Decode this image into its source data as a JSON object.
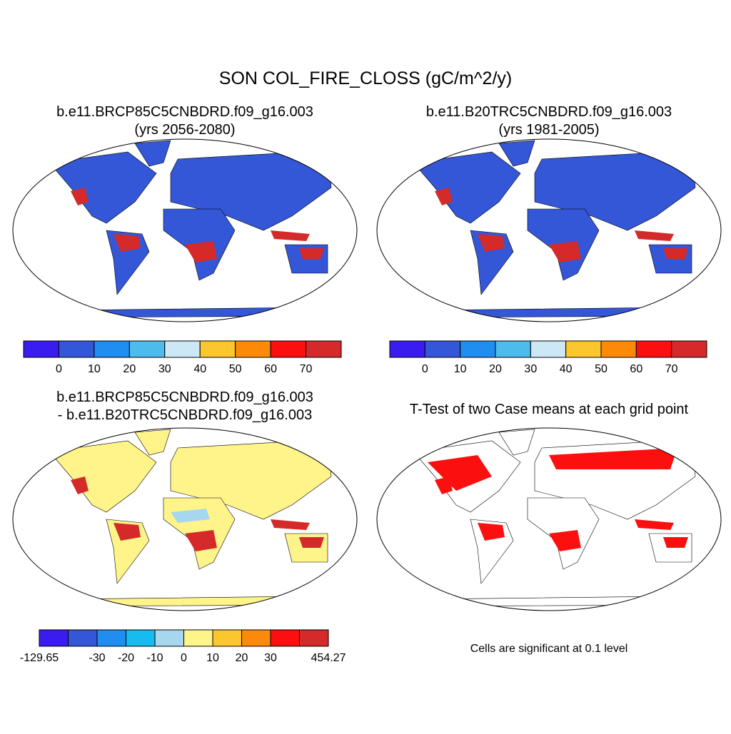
{
  "header": {
    "title": "SON COL_FIRE_CLOSS (gC/m^2/y)"
  },
  "panels": [
    {
      "title_lines": [
        "b.e11.BRCP85C5CNBDRD.f09_g16.003",
        "(yrs 2056-2080)"
      ],
      "colorbar": {
        "colors": [
          "#3b1cf0",
          "#3357d6",
          "#1f8ef0",
          "#4dbbec",
          "#cce8f6",
          "#fcc72e",
          "#fb8a0a",
          "#fb0f0f",
          "#d42a2a"
        ],
        "labels": [
          null,
          "0",
          "10",
          "20",
          "30",
          "40",
          "50",
          "60",
          "70",
          null
        ]
      }
    },
    {
      "title_lines": [
        "b.e11.B20TRC5CNBDRD.f09_g16.003",
        "(yrs 1981-2005)"
      ],
      "colorbar": {
        "colors": [
          "#3b1cf0",
          "#3357d6",
          "#1f8ef0",
          "#4dbbec",
          "#cce8f6",
          "#fcc72e",
          "#fb8a0a",
          "#fb0f0f",
          "#d42a2a"
        ],
        "labels": [
          null,
          "0",
          "10",
          "20",
          "30",
          "40",
          "50",
          "60",
          "70",
          null
        ]
      }
    },
    {
      "title_lines": [
        "b.e11.BRCP85C5CNBDRD.f09_g16.003",
        "- b.e11.B20TRC5CNBDRD.f09_g16.003"
      ],
      "colorbar": {
        "colors": [
          "#3b1cf0",
          "#3357d6",
          "#1f8ef0",
          "#16bbf0",
          "#a7d7ef",
          "#fff48a",
          "#fcc72e",
          "#fb8a0a",
          "#fb0f0f",
          "#d42a2a"
        ],
        "labels": [
          "-129.65",
          null,
          "-30",
          "-20",
          "-10",
          "0",
          "10",
          "20",
          "30",
          null,
          "454.27"
        ]
      }
    },
    {
      "title_lines": [
        "T-Test of two Case means at each grid point"
      ],
      "caption": "Cells are significant at 0.1 level"
    }
  ]
}
